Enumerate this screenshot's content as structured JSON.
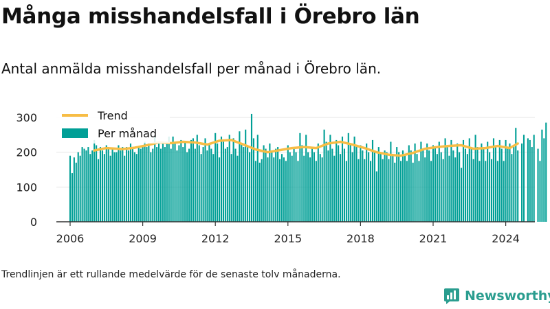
{
  "title": "Många misshandelsfall i Örebro län",
  "subtitle": "Antal anmälda misshandelsfall per månad i Örebro län.",
  "footnote": "Trendlinjen är ett rullande medelvärde för de senaste tolv månaderna.",
  "brand": {
    "name": "Newsworthy",
    "color": "#2a9d8f",
    "icon": "newsworthy-logo-icon"
  },
  "colors": {
    "bars": "#009f96",
    "trend": "#f7bd45",
    "grid": "#e6e6e6",
    "axis": "#333333"
  },
  "chart_data": {
    "type": "bar",
    "title": "Många misshandelsfall i Örebro län",
    "ylim": [
      0,
      330
    ],
    "yticks": [
      0,
      100,
      200,
      300
    ],
    "xticks": [
      "2006",
      "2009",
      "2012",
      "2015",
      "2018",
      "2021",
      "2024"
    ],
    "grid": true,
    "legend_position": "top-left",
    "start": "2006-01",
    "series": [
      {
        "name": "Per månad",
        "type": "bar",
        "values": [
          190,
          140,
          185,
          170,
          200,
          190,
          215,
          210,
          205,
          215,
          195,
          205,
          235,
          220,
          180,
          215,
          205,
          195,
          220,
          215,
          190,
          210,
          200,
          200,
          220,
          205,
          215,
          190,
          215,
          205,
          225,
          210,
          200,
          195,
          215,
          210,
          220,
          230,
          215,
          225,
          200,
          210,
          245,
          215,
          225,
          210,
          230,
          215,
          230,
          245,
          210,
          245,
          225,
          205,
          220,
          235,
          215,
          230,
          200,
          210,
          235,
          240,
          210,
          250,
          220,
          195,
          215,
          240,
          205,
          225,
          210,
          195,
          255,
          225,
          185,
          245,
          230,
          210,
          215,
          250,
          195,
          240,
          210,
          190,
          260,
          225,
          215,
          265,
          215,
          200,
          310,
          240,
          175,
          250,
          170,
          180,
          220,
          210,
          185,
          225,
          205,
          185,
          210,
          215,
          180,
          195,
          185,
          175,
          220,
          200,
          190,
          215,
          200,
          175,
          255,
          220,
          190,
          250,
          200,
          185,
          215,
          200,
          175,
          225,
          195,
          185,
          265,
          230,
          205,
          250,
          210,
          190,
          235,
          220,
          195,
          245,
          210,
          175,
          255,
          220,
          200,
          245,
          215,
          180,
          220,
          205,
          180,
          225,
          200,
          175,
          235,
          200,
          145,
          215,
          195,
          180,
          205,
          200,
          180,
          230,
          195,
          170,
          215,
          200,
          175,
          205,
          190,
          175,
          220,
          205,
          170,
          225,
          195,
          175,
          230,
          210,
          185,
          225,
          205,
          175,
          220,
          215,
          195,
          230,
          200,
          180,
          240,
          215,
          190,
          235,
          205,
          185,
          225,
          200,
          155,
          235,
          210,
          195,
          240,
          215,
          180,
          250,
          215,
          175,
          225,
          210,
          175,
          230,
          200,
          180,
          240,
          215,
          175,
          235,
          210,
          175,
          235,
          210,
          225,
          195,
          215,
          270,
          205,
          0,
          225,
          250,
          0,
          240,
          235,
          215,
          250,
          0,
          210,
          175,
          265,
          240,
          285
        ]
      },
      {
        "name": "Trend",
        "type": "line",
        "values": [
          {
            "x": "2007-01",
            "y": 205
          },
          {
            "x": "2007-07",
            "y": 212
          },
          {
            "x": "2008-03",
            "y": 209
          },
          {
            "x": "2008-09",
            "y": 213
          },
          {
            "x": "2009-03",
            "y": 220
          },
          {
            "x": "2009-09",
            "y": 228
          },
          {
            "x": "2010-03",
            "y": 226
          },
          {
            "x": "2010-09",
            "y": 230
          },
          {
            "x": "2011-03",
            "y": 228
          },
          {
            "x": "2011-09",
            "y": 222
          },
          {
            "x": "2012-03",
            "y": 233
          },
          {
            "x": "2012-09",
            "y": 235
          },
          {
            "x": "2013-03",
            "y": 222
          },
          {
            "x": "2013-09",
            "y": 208
          },
          {
            "x": "2014-03",
            "y": 200
          },
          {
            "x": "2014-09",
            "y": 206
          },
          {
            "x": "2015-03",
            "y": 212
          },
          {
            "x": "2015-09",
            "y": 215
          },
          {
            "x": "2016-03",
            "y": 212
          },
          {
            "x": "2016-09",
            "y": 225
          },
          {
            "x": "2017-03",
            "y": 230
          },
          {
            "x": "2017-09",
            "y": 222
          },
          {
            "x": "2018-03",
            "y": 212
          },
          {
            "x": "2018-09",
            "y": 200
          },
          {
            "x": "2019-03",
            "y": 193
          },
          {
            "x": "2019-09",
            "y": 190
          },
          {
            "x": "2020-03",
            "y": 198
          },
          {
            "x": "2020-09",
            "y": 210
          },
          {
            "x": "2021-03",
            "y": 215
          },
          {
            "x": "2021-09",
            "y": 218
          },
          {
            "x": "2022-03",
            "y": 220
          },
          {
            "x": "2022-09",
            "y": 210
          },
          {
            "x": "2023-03",
            "y": 212
          },
          {
            "x": "2023-09",
            "y": 218
          },
          {
            "x": "2024-03",
            "y": 212
          },
          {
            "x": "2024-07",
            "y": 225
          }
        ]
      }
    ]
  }
}
